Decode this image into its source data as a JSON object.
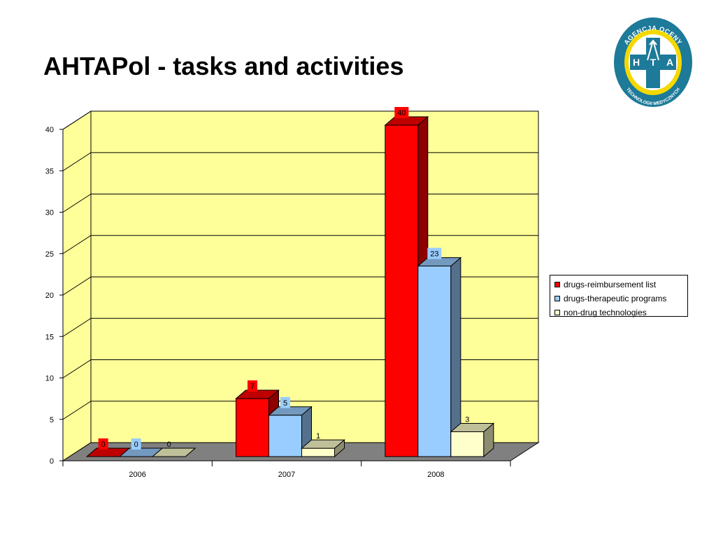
{
  "page": {
    "title": "AHTAPol - tasks and activities"
  },
  "logo": {
    "ring_text_top": "AGENCJA OCENY",
    "ring_text_bottom": "TECHNOLOGII MEDYCZNYCH",
    "letters": [
      "H",
      "T",
      "A"
    ],
    "color_primary": "#1d7a99",
    "color_accent": "#f5d800"
  },
  "chart_data": {
    "type": "bar",
    "style": "3d-clustered",
    "categories": [
      "2006",
      "2007",
      "2008"
    ],
    "series": [
      {
        "name": "drugs-reimbursement list",
        "values": [
          0,
          7,
          40
        ],
        "color": "#ff0000"
      },
      {
        "name": "drugs-therapeutic programs",
        "values": [
          0,
          5,
          23
        ],
        "color": "#99ccff"
      },
      {
        "name": "non-drug technologies",
        "values": [
          0,
          1,
          3
        ],
        "color": "#ffffcc"
      }
    ],
    "yticks": [
      "0",
      "5",
      "10",
      "15",
      "20",
      "25",
      "30",
      "35",
      "40"
    ],
    "ylim": [
      0,
      40
    ],
    "grid": true,
    "wall_color": "#ffff99",
    "floor_color": "#808080",
    "legend_position": "right",
    "data_labels": true
  }
}
